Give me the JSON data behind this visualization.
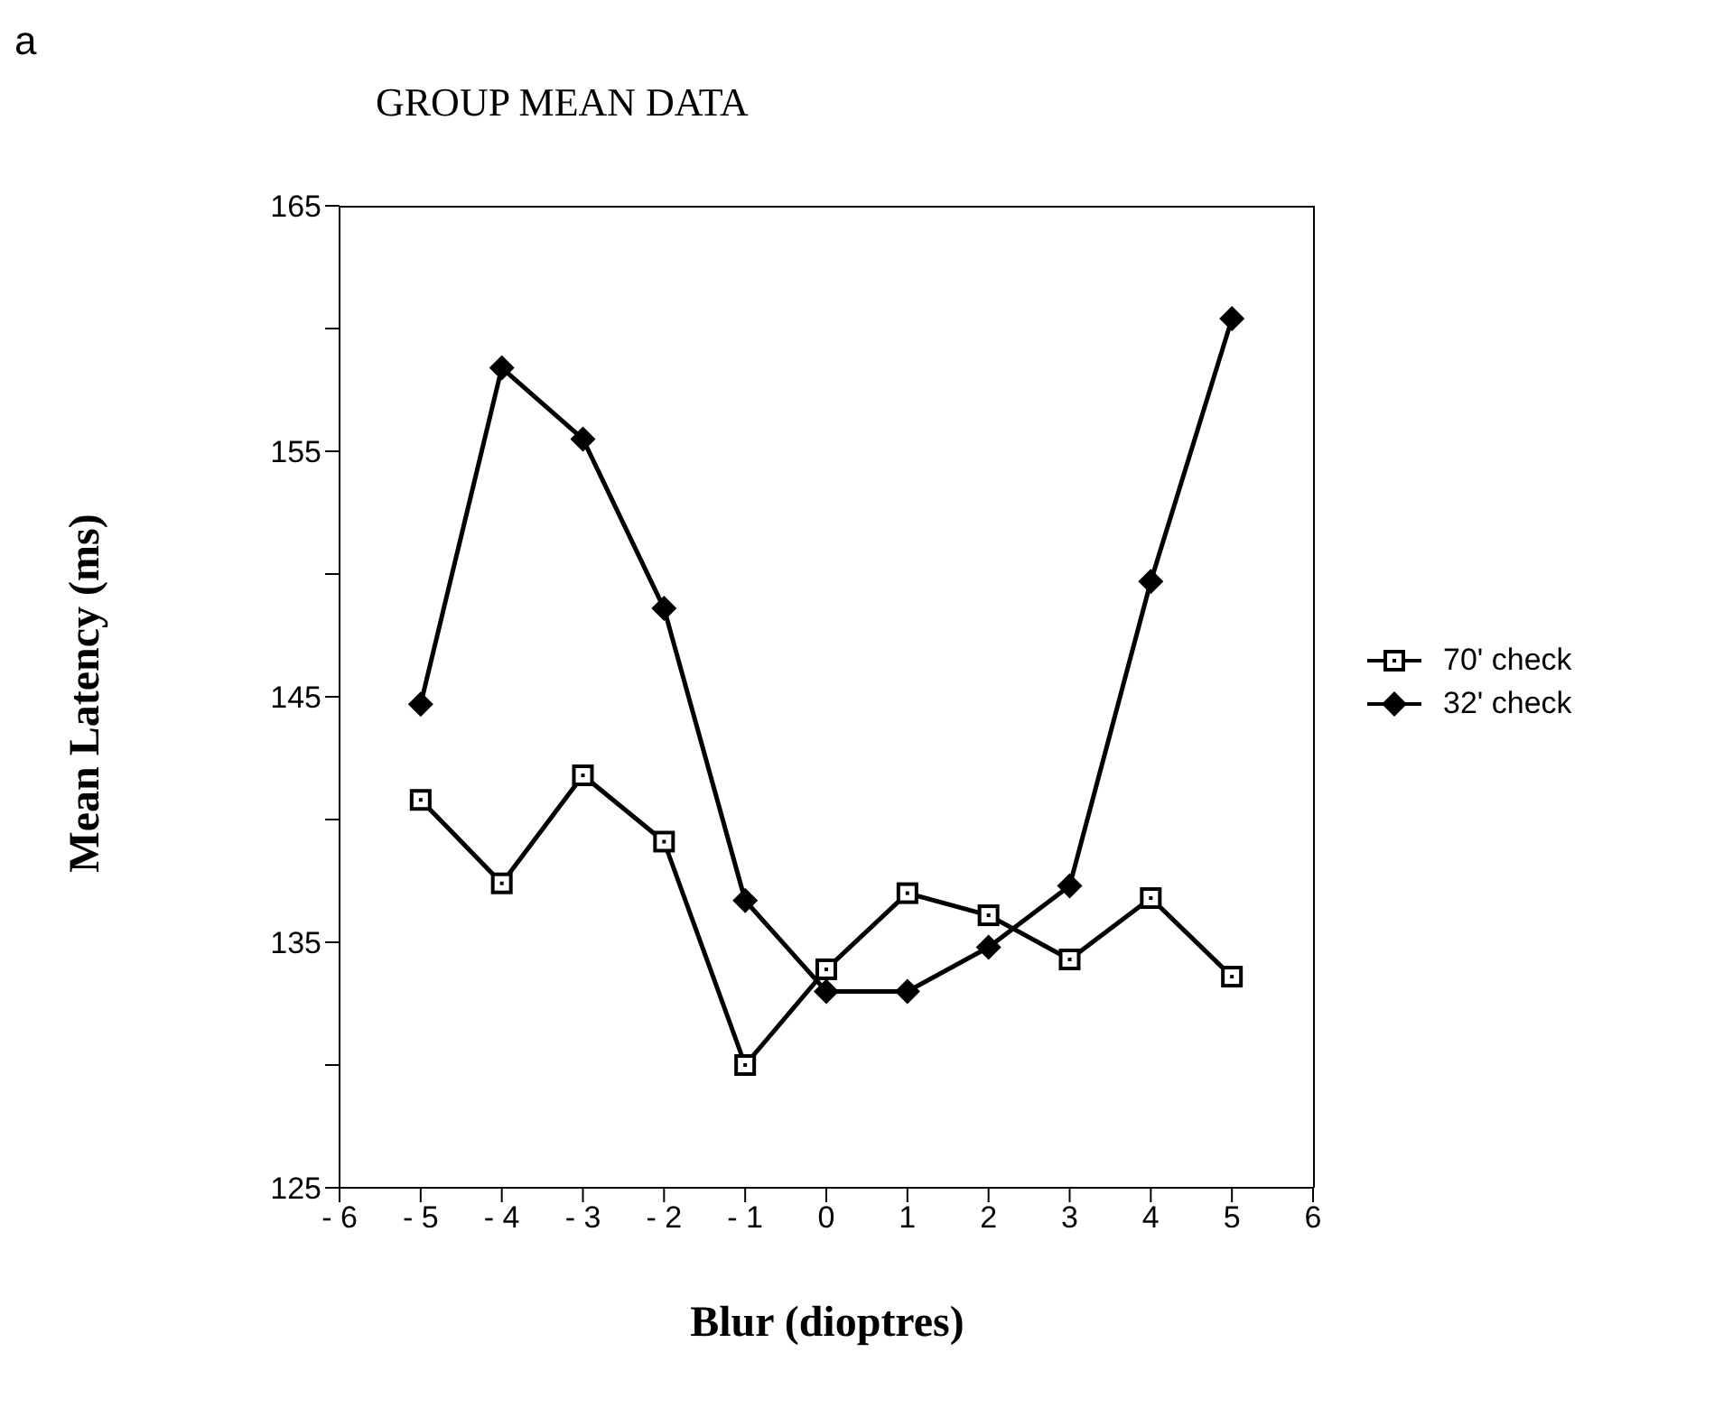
{
  "chart_data": {
    "type": "line",
    "title": "GROUP MEAN DATA",
    "xlabel": "Blur (dioptres)",
    "ylabel": "Mean Latency (ms)",
    "annotations": [
      "a"
    ],
    "x": [
      -5,
      -4,
      -3,
      -2,
      -1,
      0,
      1,
      2,
      3,
      4,
      5
    ],
    "series": [
      {
        "name": "70' check",
        "color": "#000000",
        "marker": "square",
        "values": [
          140.8,
          137.4,
          141.8,
          139.1,
          130.0,
          133.9,
          137.0,
          136.1,
          134.3,
          136.8,
          133.6
        ]
      },
      {
        "name": "32' check",
        "color": "#000000",
        "marker": "diamond",
        "values": [
          144.7,
          158.4,
          155.5,
          148.6,
          136.7,
          133.0,
          133.0,
          134.8,
          137.3,
          149.7,
          160.4
        ]
      }
    ],
    "xlim": [
      -6,
      6
    ],
    "xticks": [
      {
        "value": -6,
        "label": "- 6"
      },
      {
        "value": -5,
        "label": "- 5"
      },
      {
        "value": -4,
        "label": "- 4"
      },
      {
        "value": -3,
        "label": "- 3"
      },
      {
        "value": -2,
        "label": "- 2"
      },
      {
        "value": -1,
        "label": "- 1"
      },
      0,
      1,
      2,
      3,
      4,
      5,
      6
    ],
    "ylim": [
      125,
      165
    ],
    "yticks": [
      125,
      {
        "value": 130,
        "label": null
      },
      135,
      {
        "value": 140,
        "label": null
      },
      145,
      {
        "value": 150,
        "label": null
      },
      155,
      {
        "value": 160,
        "label": null
      },
      165
    ],
    "legend": "right",
    "line_style": "solid"
  }
}
